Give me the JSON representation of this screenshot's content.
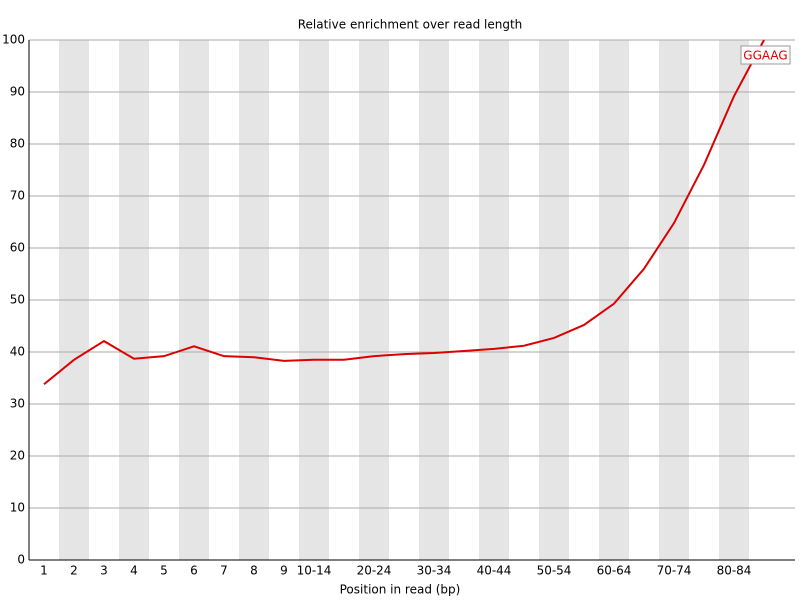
{
  "chart_data": {
    "type": "line",
    "title": "Relative enrichment over read length",
    "x_label": "Position in read (bp)",
    "categories": [
      "1",
      "2",
      "3",
      "4",
      "5",
      "6",
      "7",
      "8",
      "9",
      "10-14",
      null,
      "20-24",
      null,
      "30-34",
      null,
      "40-44",
      null,
      "50-54",
      null,
      "60-64",
      null,
      "70-74",
      null,
      "80-84",
      null
    ],
    "series": [
      {
        "name": "GGAAG",
        "color": "#dd0000",
        "values": [
          33.8,
          38.5,
          42.1,
          38.7,
          39.2,
          41.1,
          39.2,
          39.0,
          38.3,
          38.5,
          38.5,
          39.2,
          39.6,
          39.8,
          40.2,
          40.6,
          41.2,
          42.7,
          45.2,
          49.3,
          56.0,
          64.8,
          76.0,
          89.2,
          100
        ]
      }
    ],
    "ylim": [
      0,
      100
    ],
    "yticks": [
      0,
      10,
      20,
      30,
      40,
      50,
      60,
      70,
      80,
      90,
      100
    ],
    "grid": true,
    "legend": "top-right"
  }
}
